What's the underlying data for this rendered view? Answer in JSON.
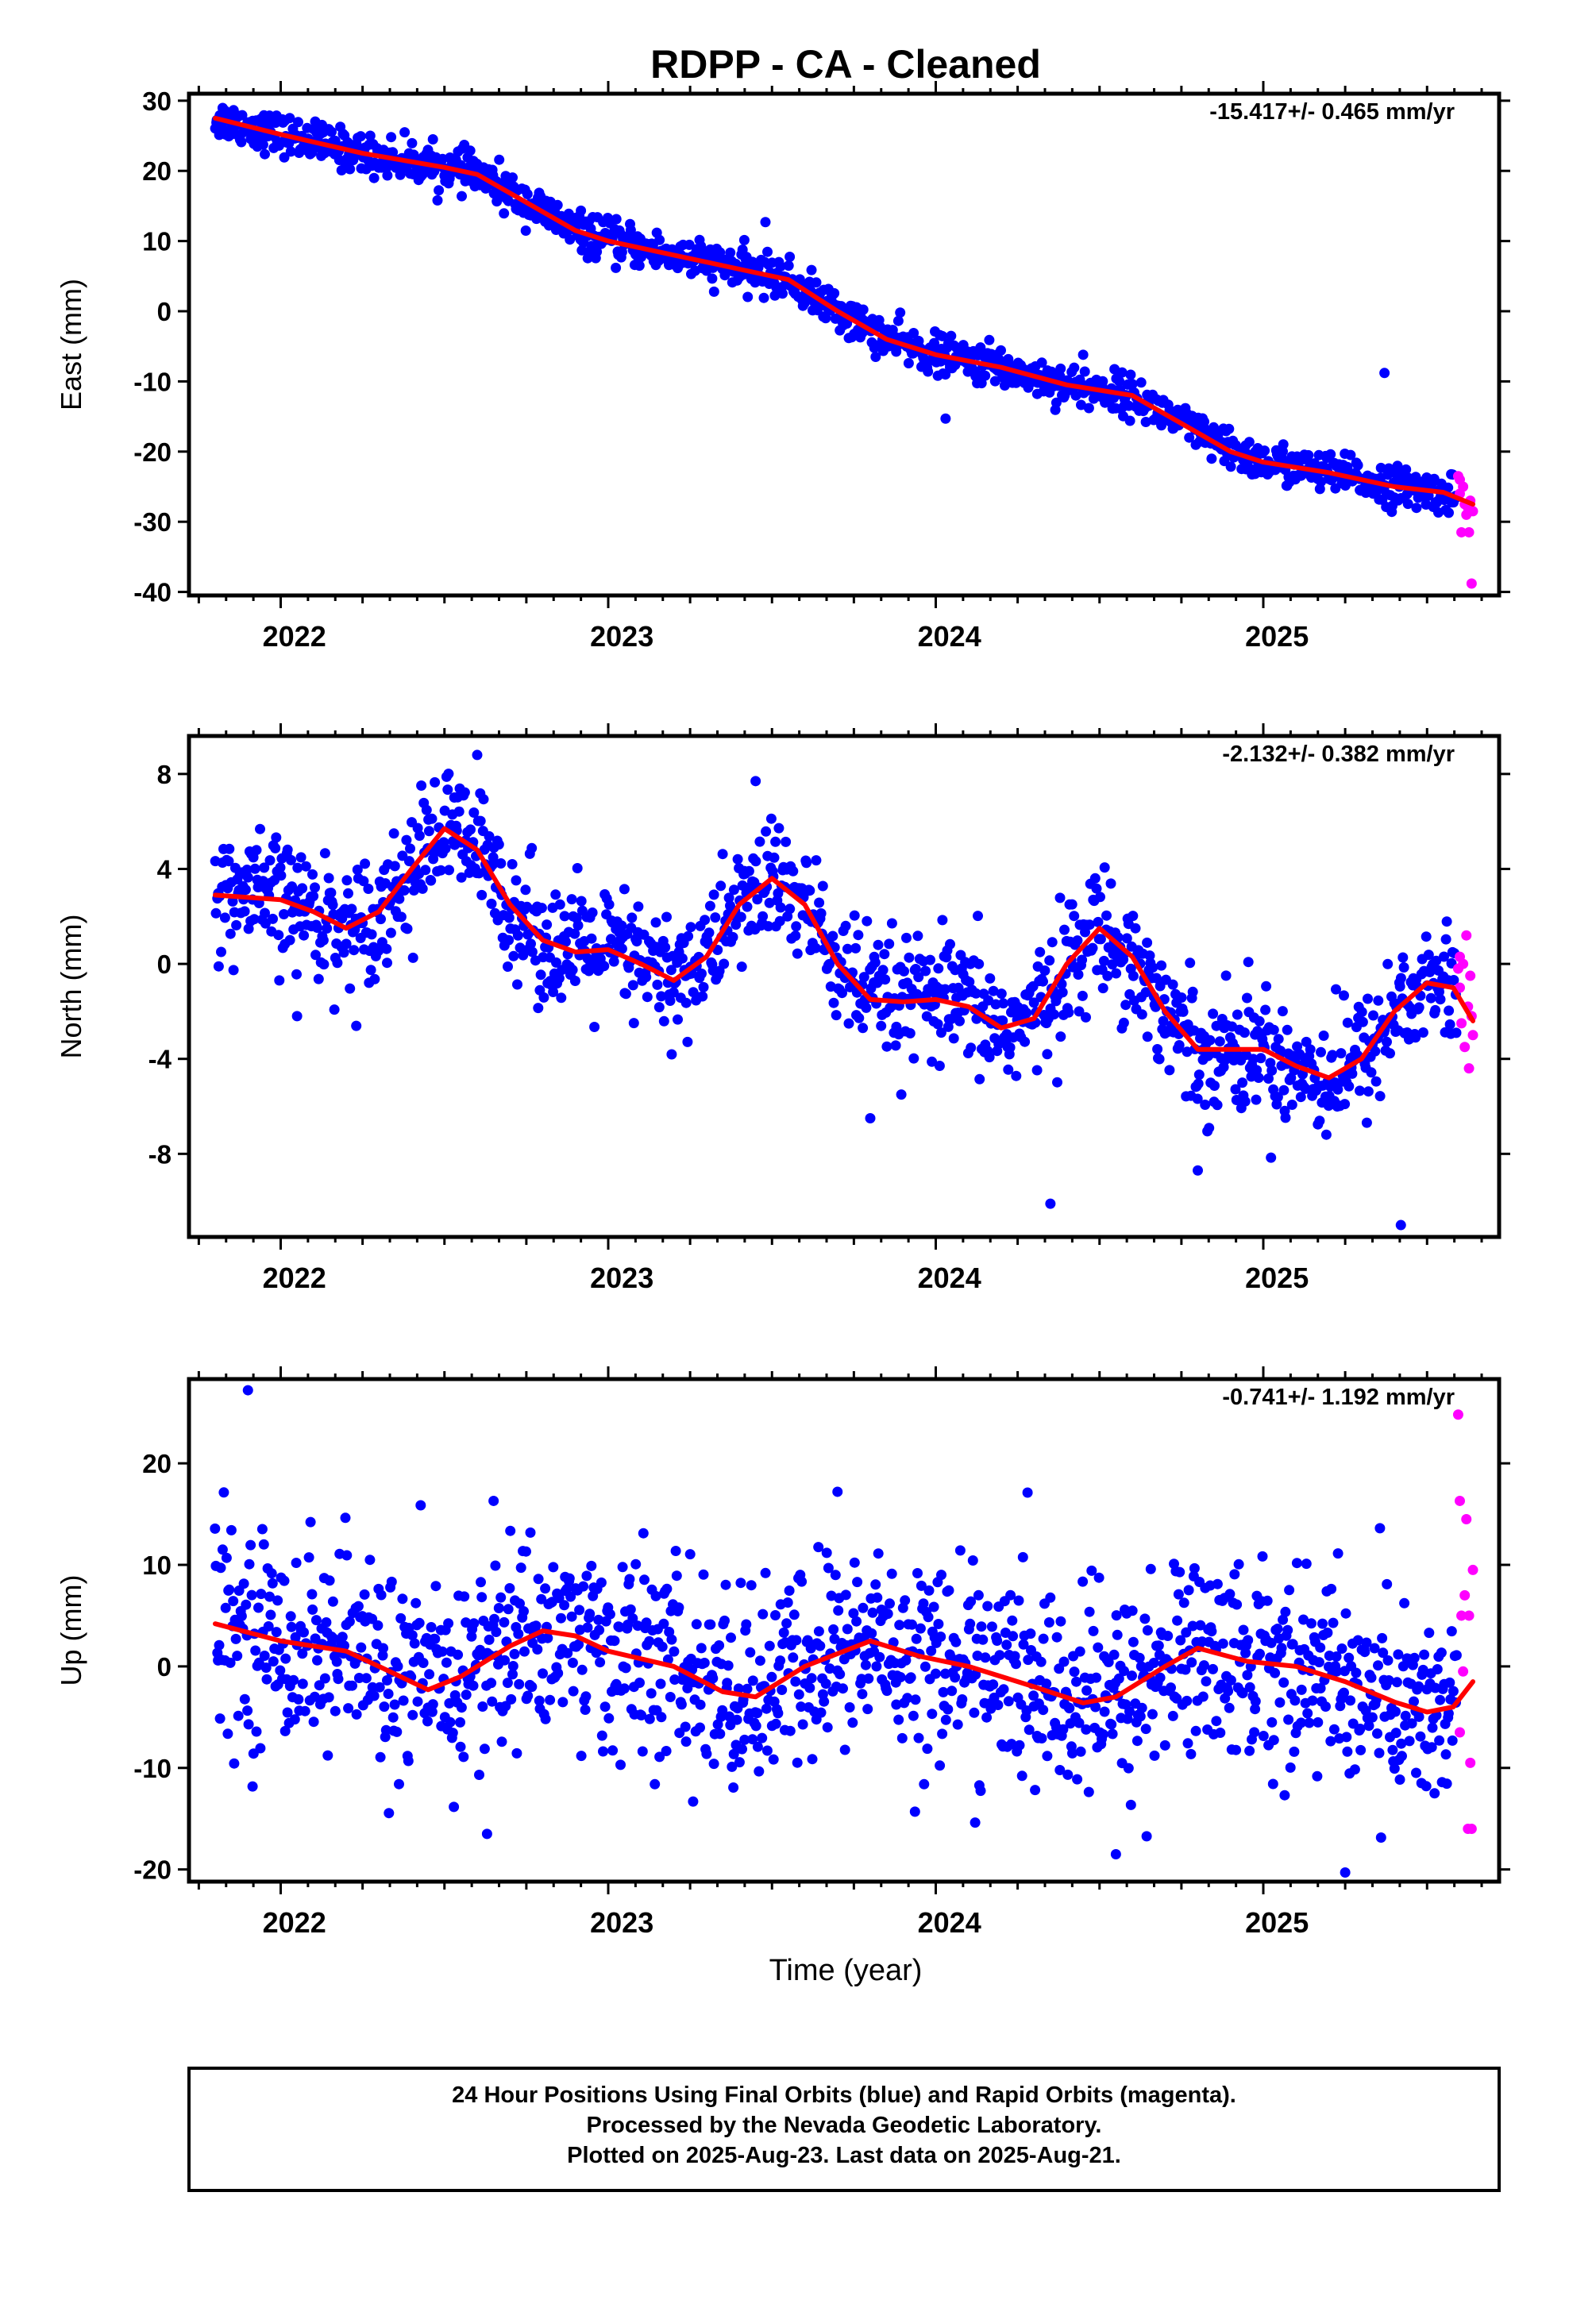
{
  "title": "RDPP  - CA - Cleaned",
  "xlabel": "Time (year)",
  "footer": {
    "line1": "24 Hour Positions Using Final Orbits (blue) and Rapid Orbits (magenta).",
    "line2": "Processed by the Nevada Geodetic Laboratory.",
    "line3": "Plotted on 2025-Aug-23. Last data on 2025-Aug-21."
  },
  "colors": {
    "final": "#0000ff",
    "rapid": "#ff00ff",
    "fit": "#ff0000"
  },
  "chart_data": [
    {
      "type": "scatter",
      "ylabel": "East (mm)",
      "rate": "-15.417+/- 0.465 mm/yr",
      "xlim": [
        2021.72,
        2025.72
      ],
      "ylim": [
        -40.5,
        31
      ],
      "xticks": [
        2022,
        2023,
        2024,
        2025
      ],
      "yticks": [
        -40,
        -30,
        -20,
        -10,
        0,
        10,
        20,
        30
      ],
      "grid": false,
      "x_start": 2021.8,
      "x_end": 2025.64,
      "rapid_start": 2025.59,
      "fit": [
        [
          2021.8,
          27.5
        ],
        [
          2022.0,
          25.2
        ],
        [
          2022.25,
          22.5
        ],
        [
          2022.5,
          20.5
        ],
        [
          2022.6,
          19.5
        ],
        [
          2022.75,
          15.5
        ],
        [
          2022.9,
          11.5
        ],
        [
          2023.0,
          10
        ],
        [
          2023.2,
          8
        ],
        [
          2023.4,
          6
        ],
        [
          2023.55,
          4.5
        ],
        [
          2023.7,
          0
        ],
        [
          2023.85,
          -4
        ],
        [
          2024.0,
          -6.2
        ],
        [
          2024.2,
          -8
        ],
        [
          2024.4,
          -10.5
        ],
        [
          2024.6,
          -12
        ],
        [
          2024.75,
          -16
        ],
        [
          2024.9,
          -20
        ],
        [
          2025.0,
          -21.5
        ],
        [
          2025.2,
          -23
        ],
        [
          2025.4,
          -25
        ],
        [
          2025.55,
          -25.8
        ],
        [
          2025.64,
          -27.5
        ]
      ],
      "noise": 1.4,
      "outliers": [
        [
          2023.48,
          12.7
        ],
        [
          2025.37,
          -8.8
        ],
        [
          2024.45,
          -6.2
        ],
        [
          2024.03,
          -15.3
        ]
      ],
      "rapid_points": [
        [
          2025.595,
          -23.5
        ],
        [
          2025.6,
          -26
        ],
        [
          2025.605,
          -31.5
        ],
        [
          2025.61,
          -25
        ],
        [
          2025.615,
          -27.5
        ],
        [
          2025.62,
          -29
        ],
        [
          2025.625,
          -28
        ],
        [
          2025.628,
          -31.5
        ],
        [
          2025.632,
          -27
        ],
        [
          2025.636,
          -38.8
        ],
        [
          2025.64,
          -28.5
        ],
        [
          2025.6,
          -24
        ]
      ]
    },
    {
      "type": "scatter",
      "ylabel": "North (mm)",
      "rate": "-2.132+/- 0.382 mm/yr",
      "xlim": [
        2021.72,
        2025.72
      ],
      "ylim": [
        -11.5,
        9.6
      ],
      "xticks": [
        2022,
        2023,
        2024,
        2025
      ],
      "yticks": [
        -8,
        -4,
        0,
        4,
        8
      ],
      "grid": false,
      "x_start": 2021.8,
      "x_end": 2025.64,
      "rapid_start": 2025.59,
      "fit": [
        [
          2021.8,
          2.9
        ],
        [
          2022.0,
          2.7
        ],
        [
          2022.1,
          2.2
        ],
        [
          2022.2,
          1.5
        ],
        [
          2022.3,
          2.2
        ],
        [
          2022.4,
          4
        ],
        [
          2022.5,
          5.7
        ],
        [
          2022.6,
          4.8
        ],
        [
          2022.7,
          2.5
        ],
        [
          2022.8,
          1
        ],
        [
          2022.9,
          0.5
        ],
        [
          2023.0,
          0.6
        ],
        [
          2023.1,
          0
        ],
        [
          2023.2,
          -0.7
        ],
        [
          2023.3,
          0.3
        ],
        [
          2023.4,
          2.5
        ],
        [
          2023.5,
          3.6
        ],
        [
          2023.6,
          2.5
        ],
        [
          2023.7,
          0
        ],
        [
          2023.8,
          -1.5
        ],
        [
          2023.9,
          -1.6
        ],
        [
          2024.0,
          -1.5
        ],
        [
          2024.1,
          -1.8
        ],
        [
          2024.2,
          -2.7
        ],
        [
          2024.3,
          -2.3
        ],
        [
          2024.4,
          0
        ],
        [
          2024.5,
          1.5
        ],
        [
          2024.6,
          0.3
        ],
        [
          2024.7,
          -2
        ],
        [
          2024.8,
          -3.6
        ],
        [
          2024.9,
          -3.6
        ],
        [
          2025.0,
          -3.6
        ],
        [
          2025.1,
          -4.3
        ],
        [
          2025.2,
          -4.8
        ],
        [
          2025.3,
          -4
        ],
        [
          2025.4,
          -2
        ],
        [
          2025.5,
          -0.8
        ],
        [
          2025.58,
          -1
        ],
        [
          2025.64,
          -2.4
        ]
      ],
      "noise": 1.3,
      "outliers": [
        [
          2022.6,
          8.8
        ],
        [
          2023.45,
          7.7
        ],
        [
          2024.35,
          -10.1
        ],
        [
          2025.42,
          -11
        ],
        [
          2023.8,
          -6.5
        ],
        [
          2022.05,
          -2.2
        ],
        [
          2024.8,
          -8.7
        ]
      ],
      "rapid_points": [
        [
          2025.595,
          -0.2
        ],
        [
          2025.6,
          -1
        ],
        [
          2025.605,
          -2.5
        ],
        [
          2025.61,
          0
        ],
        [
          2025.615,
          -3.5
        ],
        [
          2025.62,
          1.2
        ],
        [
          2025.625,
          -1.8
        ],
        [
          2025.628,
          -4.4
        ],
        [
          2025.632,
          -0.5
        ],
        [
          2025.636,
          -2.2
        ],
        [
          2025.64,
          -3
        ],
        [
          2025.6,
          0.3
        ]
      ]
    },
    {
      "type": "scatter",
      "ylabel": "Up (mm)",
      "rate": "-0.741+/- 1.192 mm/yr",
      "xlim": [
        2021.72,
        2025.72
      ],
      "ylim": [
        -21.2,
        28.3
      ],
      "xticks": [
        2022,
        2023,
        2024,
        2025
      ],
      "yticks": [
        -20,
        -10,
        0,
        10,
        20
      ],
      "grid": false,
      "x_start": 2021.8,
      "x_end": 2025.64,
      "rapid_start": 2025.59,
      "fit": [
        [
          2021.8,
          4.2
        ],
        [
          2022.0,
          2.5
        ],
        [
          2022.2,
          1.5
        ],
        [
          2022.3,
          0
        ],
        [
          2022.45,
          -2.3
        ],
        [
          2022.55,
          -1
        ],
        [
          2022.7,
          2
        ],
        [
          2022.8,
          3.5
        ],
        [
          2022.9,
          3
        ],
        [
          2023.0,
          1.5
        ],
        [
          2023.2,
          0
        ],
        [
          2023.35,
          -2.5
        ],
        [
          2023.45,
          -3
        ],
        [
          2023.6,
          0
        ],
        [
          2023.8,
          2.5
        ],
        [
          2023.95,
          1
        ],
        [
          2024.1,
          0
        ],
        [
          2024.3,
          -2
        ],
        [
          2024.45,
          -3.6
        ],
        [
          2024.55,
          -3
        ],
        [
          2024.7,
          0
        ],
        [
          2024.8,
          1.8
        ],
        [
          2024.95,
          0.5
        ],
        [
          2025.1,
          0
        ],
        [
          2025.25,
          -1.5
        ],
        [
          2025.4,
          -3.5
        ],
        [
          2025.5,
          -4.5
        ],
        [
          2025.58,
          -4
        ],
        [
          2025.64,
          -1.5
        ]
      ],
      "noise": 5,
      "outliers": [
        [
          2021.9,
          27.2
        ],
        [
          2022.63,
          -16.5
        ],
        [
          2023.7,
          17.2
        ],
        [
          2025.25,
          -20.3
        ],
        [
          2024.55,
          -18.5
        ],
        [
          2022.65,
          16.3
        ]
      ],
      "rapid_points": [
        [
          2025.595,
          24.8
        ],
        [
          2025.6,
          16.3
        ],
        [
          2025.605,
          5
        ],
        [
          2025.61,
          -0.5
        ],
        [
          2025.615,
          7
        ],
        [
          2025.62,
          14.5
        ],
        [
          2025.625,
          -16
        ],
        [
          2025.628,
          5
        ],
        [
          2025.632,
          -9.5
        ],
        [
          2025.636,
          -16
        ],
        [
          2025.64,
          9.5
        ],
        [
          2025.6,
          -6.5
        ]
      ]
    }
  ]
}
